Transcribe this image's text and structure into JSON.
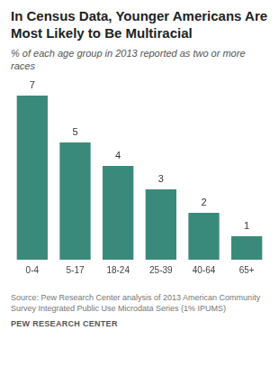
{
  "chart_data": {
    "type": "bar",
    "title": "In Census Data, Younger Americans Are Most Likely to Be Multiracial",
    "subtitle": "% of each age group in 2013 reported as two or more races",
    "categories": [
      "0-4",
      "5-17",
      "18-24",
      "25-39",
      "40-64",
      "65+"
    ],
    "values": [
      7,
      5,
      4,
      3,
      2,
      1
    ],
    "color": "#3a8a7b",
    "ylim": [
      0,
      7
    ],
    "grid": false,
    "data_labels": true,
    "tick_labels": "x",
    "source": "Source: Pew Research Center analysis of 2013 American Community Survey Integrated Public Use Microdata Series (1% IPUMS)",
    "credit": "PEW RESEARCH CENTER"
  }
}
